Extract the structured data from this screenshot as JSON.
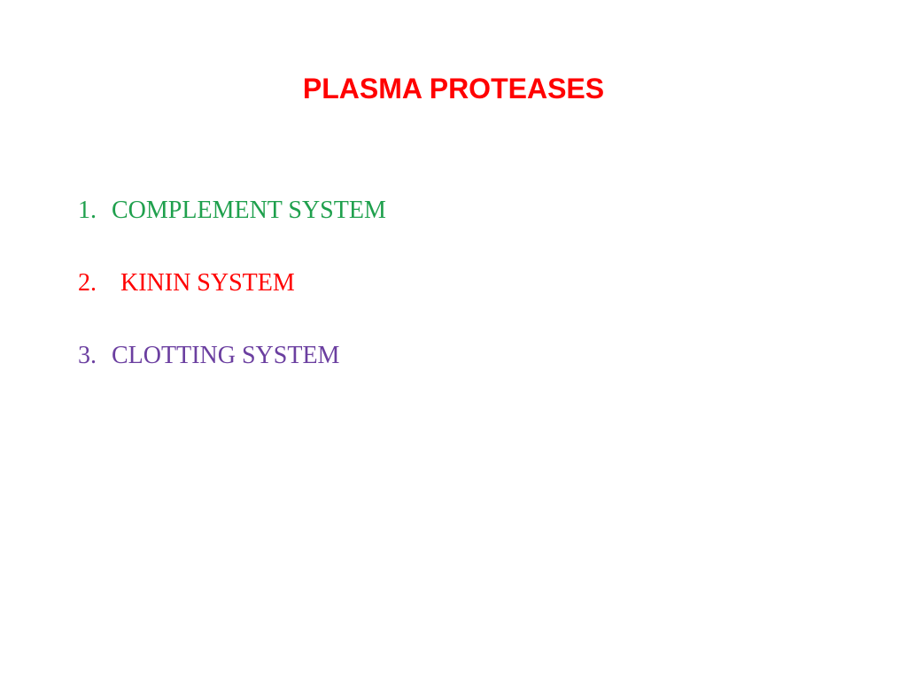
{
  "title": {
    "text": "PLASMA PROTEASES",
    "color": "#ff0000",
    "fontsize": 32
  },
  "items": [
    {
      "number": "1.",
      "text": "COMPLEMENT SYSTEM",
      "color": "#1fa04d",
      "indent_after_number": 10
    },
    {
      "number": "2.",
      "text": "KININ SYSTEM",
      "color": "#ff0000",
      "indent_after_number": 20
    },
    {
      "number": "3.",
      "text": "CLOTTING SYSTEM",
      "color": "#6b3fa0",
      "indent_after_number": 10
    }
  ],
  "list_fontsize": 28,
  "background_color": "#ffffff"
}
